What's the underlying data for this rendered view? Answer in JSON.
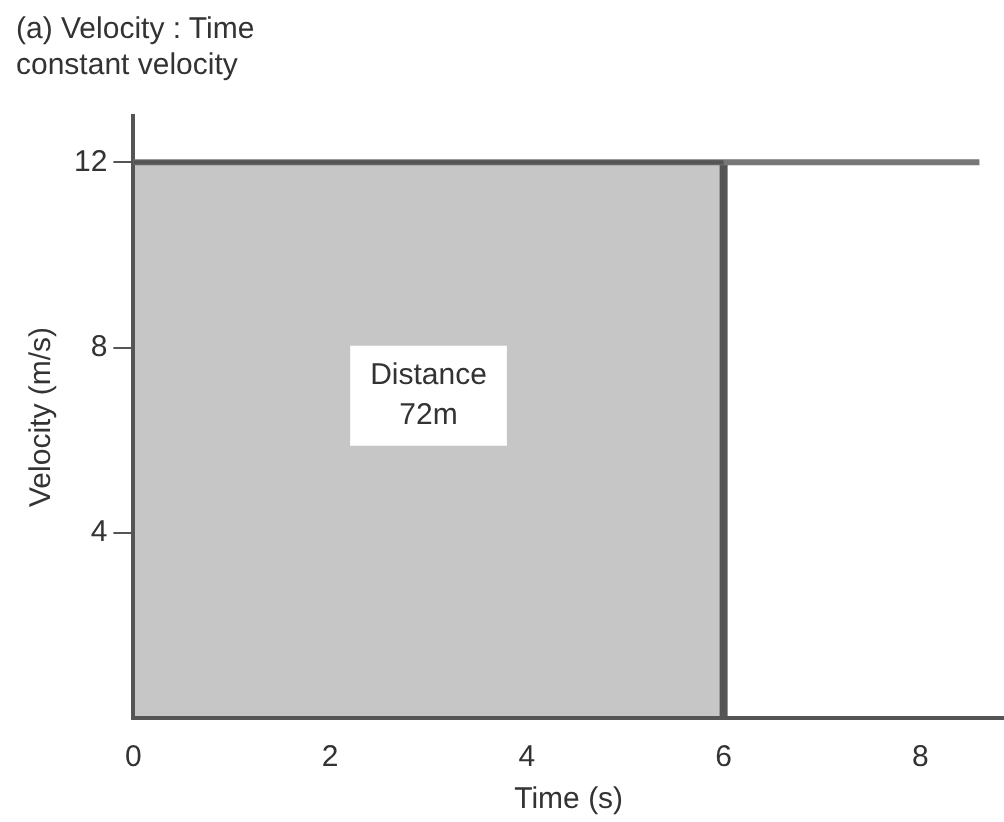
{
  "chart_data": {
    "type": "line",
    "title": "(a) Velocity : Time",
    "subtitle": "constant velocity",
    "xlabel": "Time (s)",
    "ylabel": "Velocity (m/s)",
    "series": [
      {
        "type": "area",
        "color": "#555555",
        "x": [
          0,
          6
        ],
        "values": [
          12,
          12
        ]
      },
      {
        "type": "line",
        "color": "#777777",
        "x": [
          0,
          8.6
        ],
        "values": [
          12,
          12
        ]
      }
    ],
    "annotations": [
      "Distance 72m"
    ],
    "ref_lines": [
      {
        "axis": "x",
        "value": 6,
        "color": "#555555"
      }
    ],
    "xlim": [
      0,
      8.85
    ],
    "xticks": [
      0,
      2,
      4,
      6,
      8
    ],
    "ylim": [
      0,
      13
    ],
    "yticks": [
      4,
      8,
      12
    ],
    "grid": false,
    "legend": false
  }
}
